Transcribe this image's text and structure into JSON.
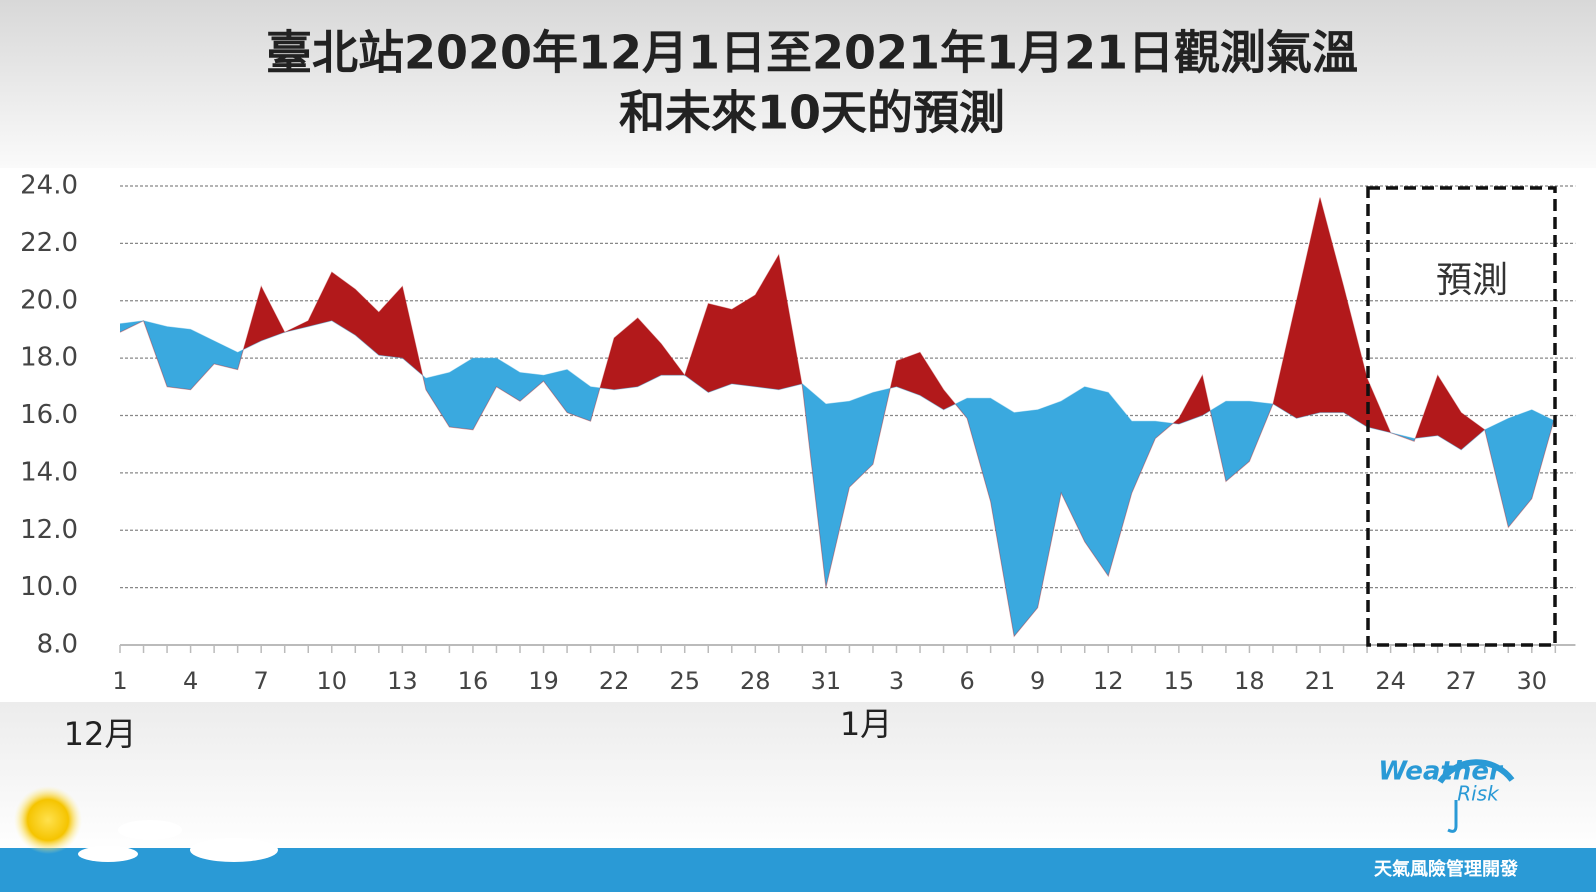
{
  "chart_data": {
    "type": "difference-area",
    "title": "臺北站2020年12月1日至2021年1月21日觀測氣溫",
    "subtitle": "和未來10天的預測",
    "categories": [
      "1",
      null,
      null,
      "4",
      null,
      null,
      "7",
      null,
      null,
      "10",
      null,
      null,
      "13",
      null,
      null,
      "16",
      null,
      null,
      "19",
      null,
      null,
      "22",
      null,
      null,
      "25",
      null,
      null,
      "28",
      null,
      null,
      "31",
      null,
      null,
      "3",
      null,
      null,
      "6",
      null,
      null,
      "9",
      null,
      null,
      "12",
      null,
      null,
      "15",
      null,
      null,
      "18",
      null,
      null,
      "21",
      null,
      null,
      "24",
      null,
      null,
      "27",
      null,
      null,
      "30",
      null
    ],
    "month_labels": [
      "12月",
      "1月"
    ],
    "series": [
      {
        "color": "#b2191b",
        "values": [
          18.9,
          19.3,
          17.0,
          16.9,
          17.8,
          17.6,
          20.5,
          18.9,
          19.3,
          21.0,
          20.4,
          19.6,
          20.5,
          16.9,
          15.6,
          15.5,
          17.0,
          16.5,
          17.2,
          16.1,
          15.8,
          18.7,
          19.4,
          18.5,
          17.4,
          19.9,
          19.7,
          20.2,
          21.6,
          17.0,
          10.0,
          13.5,
          14.3,
          17.9,
          18.2,
          16.9,
          15.9,
          13.0,
          8.3,
          9.3,
          13.3,
          11.6,
          10.4,
          13.3,
          15.2,
          15.9,
          17.4,
          13.7,
          14.4,
          16.4,
          20.0,
          23.6,
          20.5,
          17.3,
          15.4,
          15.1,
          17.4,
          16.1,
          15.5,
          12.1,
          13.1,
          16.0
        ]
      },
      {
        "color": "#3aa9df",
        "values": [
          19.2,
          19.3,
          19.1,
          19.0,
          18.6,
          18.2,
          18.6,
          18.9,
          19.1,
          19.3,
          18.8,
          18.1,
          18.0,
          17.3,
          17.5,
          18.0,
          18.0,
          17.5,
          17.4,
          17.6,
          17.0,
          16.9,
          17.0,
          17.4,
          17.4,
          16.8,
          17.1,
          17.0,
          16.9,
          17.1,
          16.4,
          16.5,
          16.8,
          17.0,
          16.7,
          16.2,
          16.6,
          16.6,
          16.1,
          16.2,
          16.5,
          17.0,
          16.8,
          15.8,
          15.8,
          15.7,
          16.0,
          16.5,
          16.5,
          16.4,
          15.9,
          16.1,
          16.1,
          15.6,
          15.4,
          15.2,
          15.3,
          14.8,
          15.5,
          15.9,
          16.2,
          15.8
        ]
      }
    ],
    "ylim": [
      8,
      24
    ],
    "yticks": [
      {
        "value": 8,
        "label": "8.0"
      },
      {
        "value": 10,
        "label": "10.0"
      },
      {
        "value": 12,
        "label": "12.0"
      },
      {
        "value": 14,
        "label": "14.0"
      },
      {
        "value": 16,
        "label": "16.0"
      },
      {
        "value": 18,
        "label": "18.0"
      },
      {
        "value": 20,
        "label": "20.0"
      },
      {
        "value": 22,
        "label": "22.0"
      },
      {
        "value": 24,
        "label": "24.0"
      }
    ],
    "grid": true,
    "annotation": "預測"
  },
  "logo": {
    "line1": "Weather",
    "line2": "Risk",
    "tagline": "天氣風險管理開發"
  }
}
